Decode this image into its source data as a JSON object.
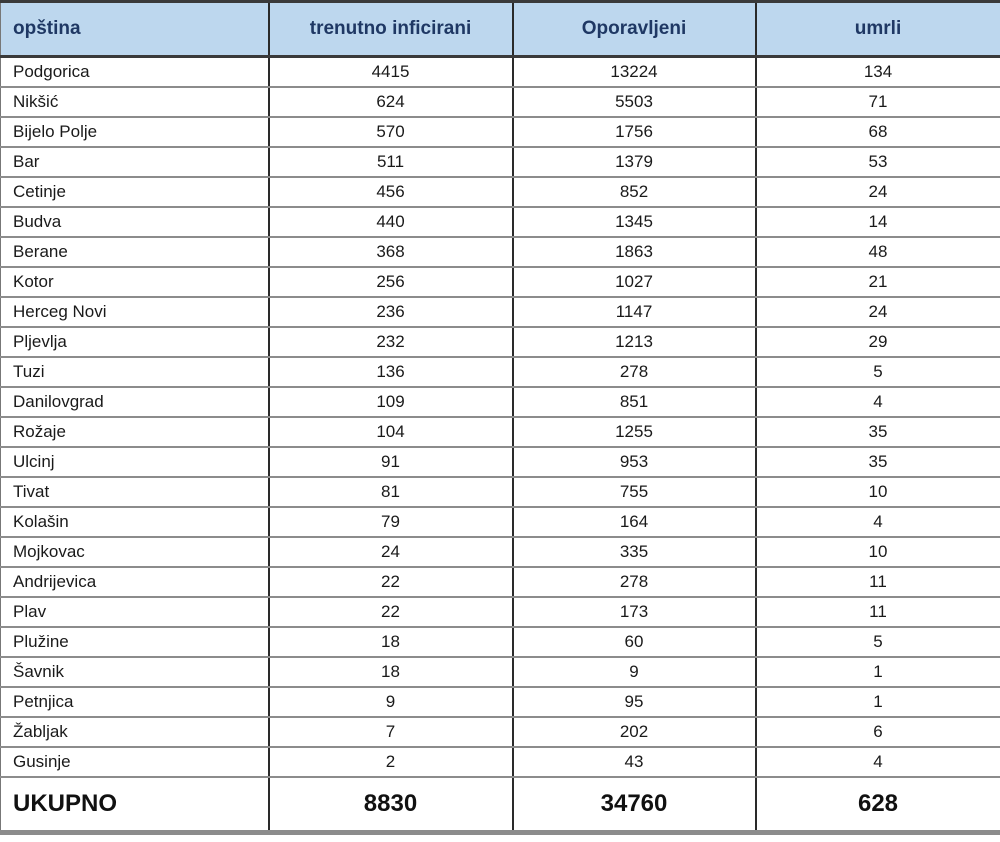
{
  "colors": {
    "header_bg": "#BDD7EE",
    "header_text": "#1F3864",
    "body_text": "#1A1A1A",
    "border_dark": "#2A2A2A",
    "border_gray": "#8C8C8C"
  },
  "table": {
    "columns": [
      "opština",
      "trenutno inficirani",
      "Oporavljeni",
      "umrli"
    ],
    "rows": [
      [
        "Podgorica",
        "4415",
        "13224",
        "134"
      ],
      [
        "Nikšić",
        "624",
        "5503",
        "71"
      ],
      [
        "Bijelo Polje",
        "570",
        "1756",
        "68"
      ],
      [
        "Bar",
        "511",
        "1379",
        "53"
      ],
      [
        "Cetinje",
        "456",
        "852",
        "24"
      ],
      [
        "Budva",
        "440",
        "1345",
        "14"
      ],
      [
        "Berane",
        "368",
        "1863",
        "48"
      ],
      [
        "Kotor",
        "256",
        "1027",
        "21"
      ],
      [
        "Herceg Novi",
        "236",
        "1147",
        "24"
      ],
      [
        "Pljevlja",
        "232",
        "1213",
        "29"
      ],
      [
        "Tuzi",
        "136",
        "278",
        "5"
      ],
      [
        "Danilovgrad",
        "109",
        "851",
        "4"
      ],
      [
        "Rožaje",
        "104",
        "1255",
        "35"
      ],
      [
        "Ulcinj",
        "91",
        "953",
        "35"
      ],
      [
        "Tivat",
        "81",
        "755",
        "10"
      ],
      [
        "Kolašin",
        "79",
        "164",
        "4"
      ],
      [
        "Mojkovac",
        "24",
        "335",
        "10"
      ],
      [
        "Andrijevica",
        "22",
        "278",
        "11"
      ],
      [
        "Plav",
        "22",
        "173",
        "11"
      ],
      [
        "Plužine",
        "18",
        "60",
        "5"
      ],
      [
        "Šavnik",
        "18",
        "9",
        "1"
      ],
      [
        "Petnjica",
        "9",
        "95",
        "1"
      ],
      [
        "Žabljak",
        "7",
        "202",
        "6"
      ],
      [
        "Gusinje",
        "2",
        "43",
        "4"
      ]
    ],
    "total": [
      "UKUPNO",
      "8830",
      "34760",
      "628"
    ]
  },
  "chart_data": {
    "type": "table",
    "title": "",
    "columns": [
      "opština",
      "trenutno inficirani",
      "Oporavljeni",
      "umrli"
    ],
    "rows": [
      [
        "Podgorica",
        4415,
        13224,
        134
      ],
      [
        "Nikšić",
        624,
        5503,
        71
      ],
      [
        "Bijelo Polje",
        570,
        1756,
        68
      ],
      [
        "Bar",
        511,
        1379,
        53
      ],
      [
        "Cetinje",
        456,
        852,
        24
      ],
      [
        "Budva",
        440,
        1345,
        14
      ],
      [
        "Berane",
        368,
        1863,
        48
      ],
      [
        "Kotor",
        256,
        1027,
        21
      ],
      [
        "Herceg Novi",
        236,
        1147,
        24
      ],
      [
        "Pljevlja",
        232,
        1213,
        29
      ],
      [
        "Tuzi",
        136,
        278,
        5
      ],
      [
        "Danilovgrad",
        109,
        851,
        4
      ],
      [
        "Rožaje",
        104,
        1255,
        35
      ],
      [
        "Ulcinj",
        91,
        953,
        35
      ],
      [
        "Tivat",
        81,
        755,
        10
      ],
      [
        "Kolašin",
        79,
        164,
        4
      ],
      [
        "Mojkovac",
        24,
        335,
        10
      ],
      [
        "Andrijevica",
        22,
        278,
        11
      ],
      [
        "Plav",
        22,
        173,
        11
      ],
      [
        "Plužine",
        18,
        60,
        5
      ],
      [
        "Šavnik",
        18,
        9,
        1
      ],
      [
        "Petnjica",
        9,
        95,
        1
      ],
      [
        "Žabljak",
        7,
        202,
        6
      ],
      [
        "Gusinje",
        2,
        43,
        4
      ]
    ],
    "totals_row": [
      "UKUPNO",
      8830,
      34760,
      628
    ]
  }
}
